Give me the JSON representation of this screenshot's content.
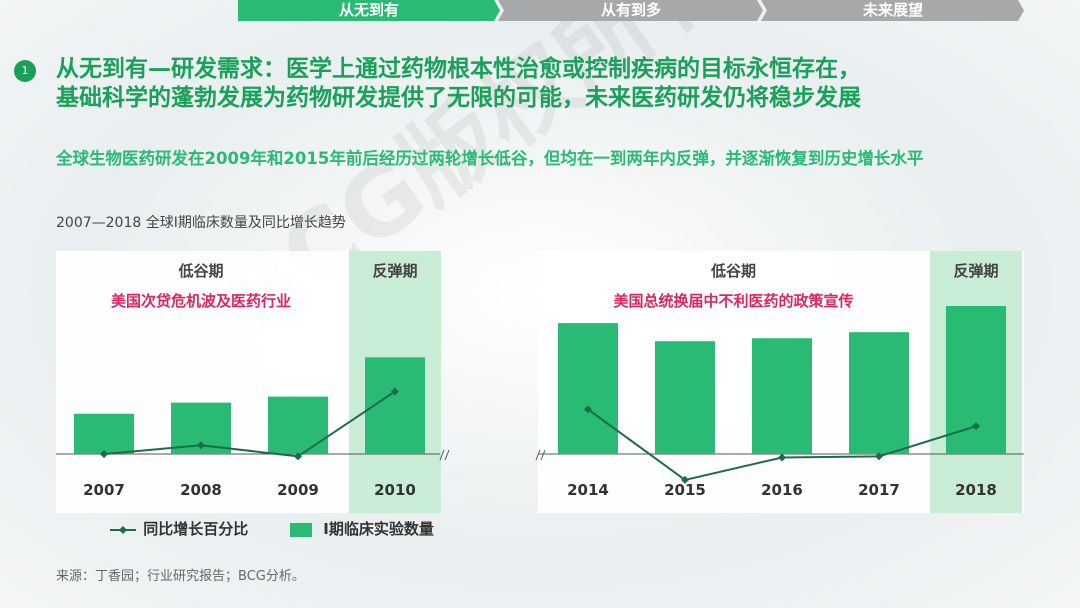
{
  "nav": {
    "tabs": [
      {
        "label": "从无到有",
        "active": true
      },
      {
        "label": "从有到多",
        "active": false
      },
      {
        "label": "未来展望",
        "active": false
      }
    ]
  },
  "section": {
    "number": "1",
    "headline_line1": "从无到有—研发需求：医学上通过药物根本性治愈或控制疾病的目标永恒存在，",
    "headline_line2": "基础科学的蓬勃发展为药物研发提供了无限的可能，未来医药研发仍将稳步发展",
    "subhead": "全球生物医药研发在2009年和2015年前后经历过两轮增长低谷，但均在一到两年内反弹，并逐渐恢复到历史增长水平"
  },
  "chart_title": "2007—2018  全球I期临床数量及同比增长趋势",
  "watermark": "BCG版权所有",
  "source": "来源：丁香园；行业研究报告；BCG分析。",
  "colors": {
    "accent": "#1aa159",
    "bar": "#29ba74",
    "highlight": "#c8ecd6",
    "line": "#1d6b4a",
    "red_note": "#e0245e",
    "tab_active": "#29ba74",
    "tab_inactive": "#a7a8aa"
  },
  "chart_data": {
    "type": "bar",
    "value_axis_labels_visible": false,
    "panels": [
      {
        "categories": [
          "2007",
          "2008",
          "2009",
          "2010"
        ],
        "highlight": "2010",
        "groups": [
          {
            "label": "低谷期",
            "note": "美国次贷危机波及医药行业",
            "categories": [
              "2007",
              "2008",
              "2009"
            ]
          },
          {
            "label": "反弹期",
            "note": "",
            "categories": [
              "2010"
            ]
          }
        ]
      },
      {
        "categories": [
          "2014",
          "2015",
          "2016",
          "2017",
          "2018"
        ],
        "highlight": "2018",
        "groups": [
          {
            "label": "低谷期",
            "note": "美国总统换届中不利医药的政策宣传",
            "categories": [
              "2014",
              "2015",
              "2016",
              "2017"
            ]
          },
          {
            "label": "反弹期",
            "note": "",
            "categories": [
              "2018"
            ]
          }
        ]
      }
    ],
    "series": [
      {
        "name": "I期临床实验数量",
        "kind": "bar",
        "values": {
          "2007": 40,
          "2008": 51,
          "2009": 57,
          "2010": 96,
          "2014": 130,
          "2015": 112,
          "2016": 115,
          "2017": 121,
          "2018": 147
        },
        "relative_scale": true
      },
      {
        "name": "同比增长百分比",
        "kind": "line",
        "values": {
          "2007": 7,
          "2008": 15,
          "2009": 5,
          "2010": 63,
          "2014": 47,
          "2015": -16,
          "2016": 4,
          "2017": 5,
          "2018": 32
        },
        "relative_scale": true
      }
    ],
    "legend": {
      "position": "bottom-left",
      "items": [
        "同比增长百分比",
        "I期临床实验数量"
      ]
    }
  }
}
